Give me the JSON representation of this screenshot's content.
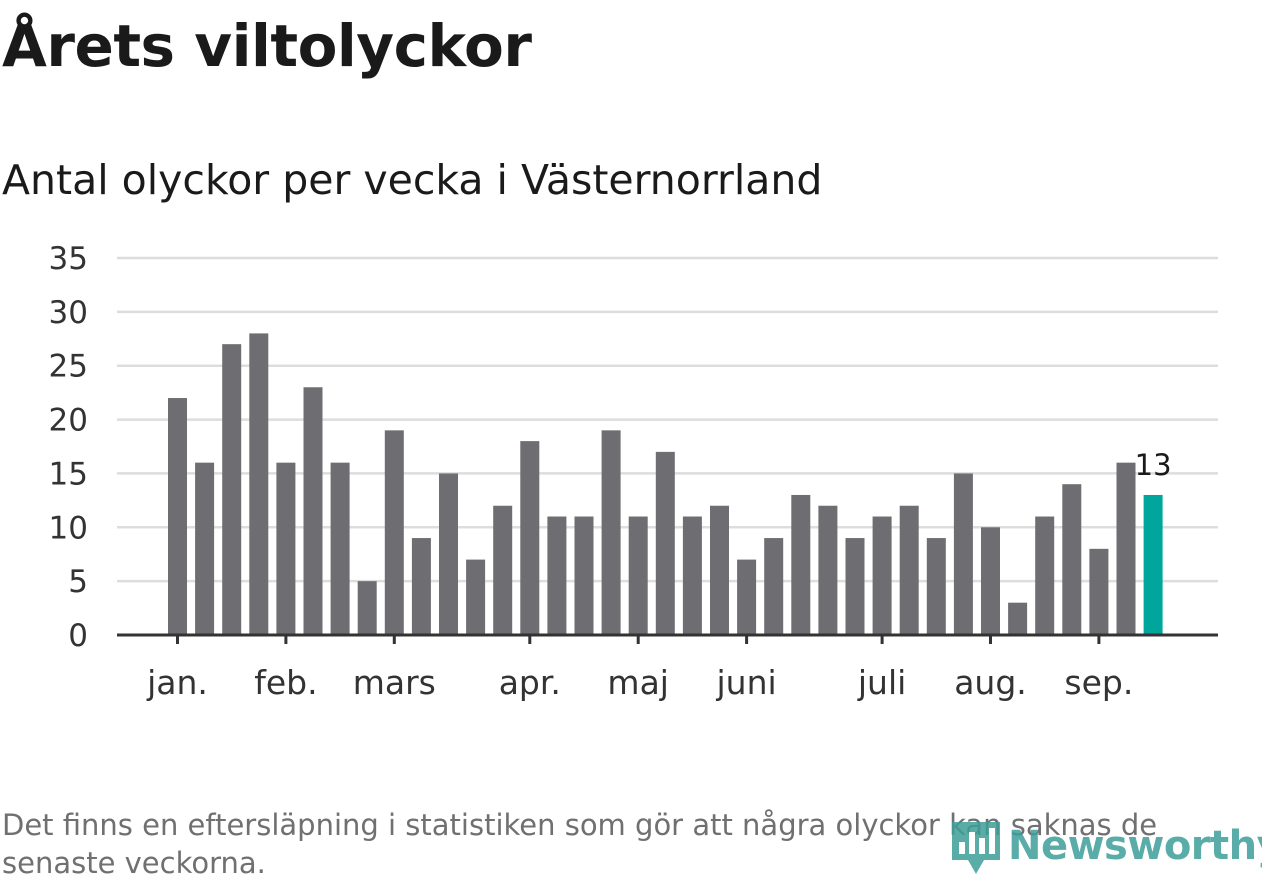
{
  "title": "Årets viltolyckor",
  "subtitle": "Antal olyckor per vecka i Västernorrland",
  "footnote": "Det finns en eftersläpning i statistiken som gör att några olyckor kan saknas de senaste veckorna.",
  "logo": {
    "text": "Newsworthy",
    "icon": "newsworthy-logo-icon",
    "color": "#3d9e98"
  },
  "colors": {
    "bar": "#6e6d72",
    "highlight": "#00a69c",
    "grid": "#dddddd",
    "axis": "#333333"
  },
  "chart_data": {
    "type": "bar",
    "ylim": [
      0,
      35
    ],
    "yticks": [
      0,
      5,
      10,
      15,
      20,
      25,
      30,
      35
    ],
    "grid": true,
    "values": [
      22,
      16,
      27,
      28,
      16,
      23,
      16,
      5,
      19,
      9,
      15,
      7,
      12,
      18,
      11,
      11,
      19,
      11,
      17,
      11,
      12,
      7,
      9,
      13,
      12,
      9,
      11,
      12,
      9,
      15,
      10,
      3,
      11,
      14,
      8,
      16,
      13
    ],
    "highlight_index": 36,
    "data_label": "13",
    "month_labels": [
      "jan.",
      "feb.",
      "mars",
      "apr.",
      "maj",
      "juni",
      "juli",
      "aug.",
      "sep."
    ],
    "month_positions": [
      0,
      4,
      8,
      13,
      17,
      21,
      26,
      30,
      34
    ]
  }
}
